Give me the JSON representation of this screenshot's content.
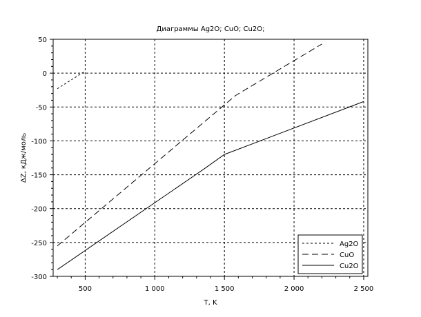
{
  "chart_data": {
    "type": "line",
    "title": "Диаграммы Ag2O; CuO; Cu2O;",
    "xlabel": "T, K",
    "ylabel": "ΔZ, кДж/моль",
    "xlim": [
      270,
      2530
    ],
    "ylim": [
      -300,
      50
    ],
    "xticks": [
      500,
      1000,
      1500,
      2000,
      2500
    ],
    "xtick_labels": [
      "500",
      "1 000",
      "1 500",
      "2 000",
      "2 500"
    ],
    "yticks": [
      50,
      0,
      -50,
      -100,
      -150,
      -200,
      -250,
      -300
    ],
    "ytick_labels": [
      "50",
      "0",
      "-50",
      "-100",
      "-150",
      "-200",
      "-250",
      "-300"
    ],
    "grid": true,
    "legend_position": "bottom-right",
    "series": [
      {
        "name": "Ag2O",
        "style": "dotted",
        "color": "#000000",
        "x": [
          300,
          500
        ],
        "y": [
          -23,
          3
        ]
      },
      {
        "name": "CuO",
        "style": "dashed",
        "color": "#000000",
        "x": [
          300,
          1580,
          2200
        ],
        "y": [
          -255,
          -33,
          43
        ]
      },
      {
        "name": "Cu2O",
        "style": "solid",
        "color": "#000000",
        "x": [
          300,
          1357,
          1500,
          2500
        ],
        "y": [
          -290,
          -141,
          -120,
          -42
        ]
      }
    ]
  }
}
